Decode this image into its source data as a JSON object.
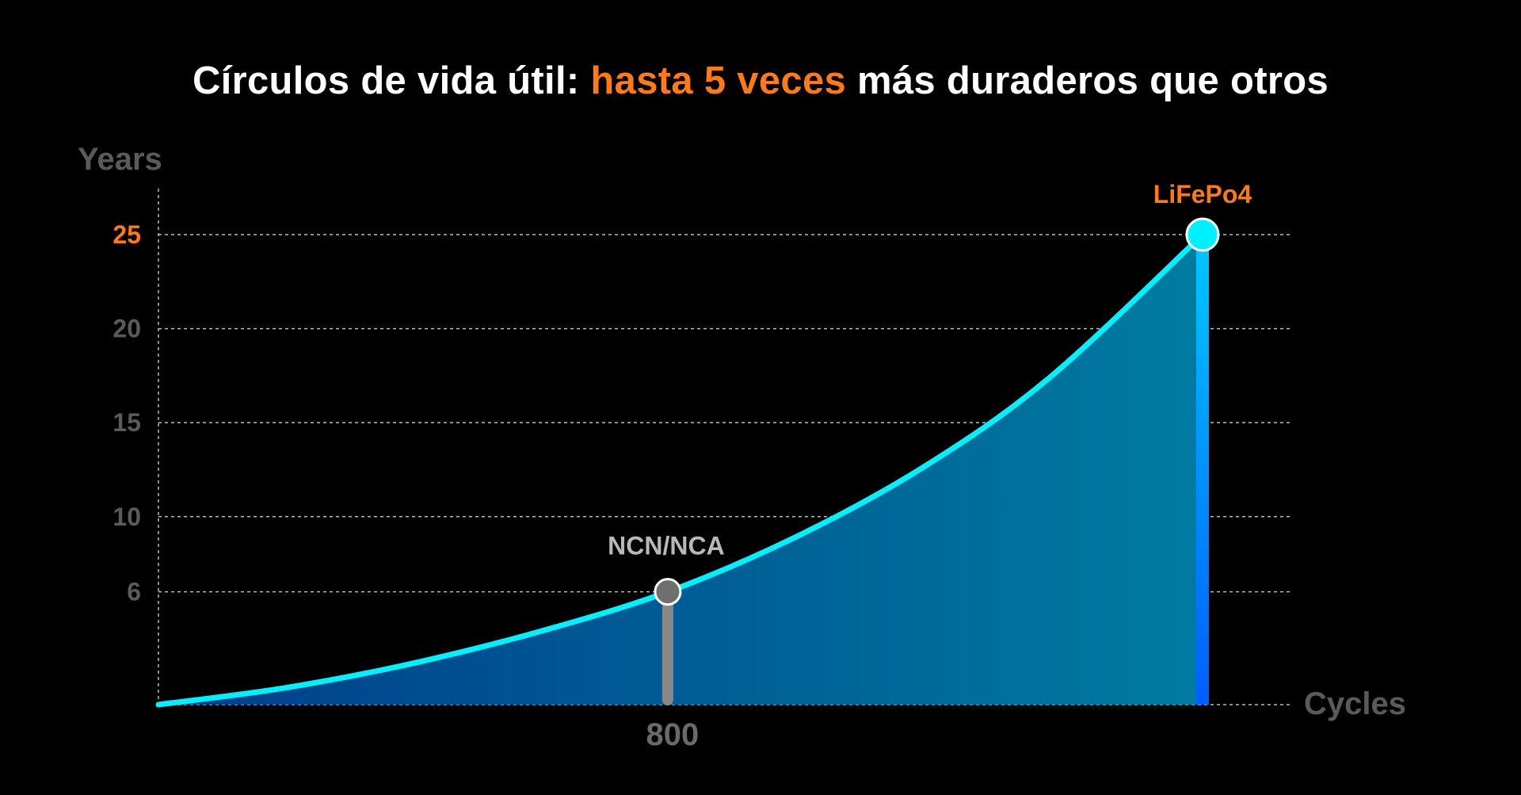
{
  "header": {
    "title_part1": "Círculos de vida útil: ",
    "title_highlight": "hasta 5 veces",
    "title_part2": " más duraderos que otros"
  },
  "colors": {
    "accent": "#ff7a1a",
    "curve": "#00f0ff",
    "area_left": "#003d8a",
    "area_right": "#007ba0",
    "bar_lifepo4_top": "#00c8ff",
    "bar_lifepo4_bottom": "#005dff",
    "bar_ncm": "#888888",
    "grid": "#bbbbbb",
    "axis_text": "#5a5a5a"
  },
  "chart_data": {
    "type": "area",
    "title": "Círculos de vida útil: hasta 5 veces más duraderos que otros",
    "ylabel": "Years",
    "xlabel": "Cycles",
    "yticks": [
      6,
      10,
      15,
      20,
      25
    ],
    "highlighted_ytick": 25,
    "xticks": [
      800
    ],
    "ylim": [
      0,
      25
    ],
    "xlim": [
      0,
      1640
    ],
    "grid": true,
    "series": [
      {
        "curve": "exponential",
        "x": [
          0,
          200,
          400,
          600,
          800,
          1000,
          1200,
          1400,
          1640
        ],
        "y": [
          0,
          0.9,
          2.2,
          3.9,
          6,
          8.9,
          12.6,
          17.4,
          25
        ]
      }
    ],
    "points": [
      {
        "label": "NCN/NCA",
        "x": 800,
        "y": 6
      },
      {
        "label": "LiFePo4",
        "x": 1640,
        "y": 25
      }
    ]
  }
}
